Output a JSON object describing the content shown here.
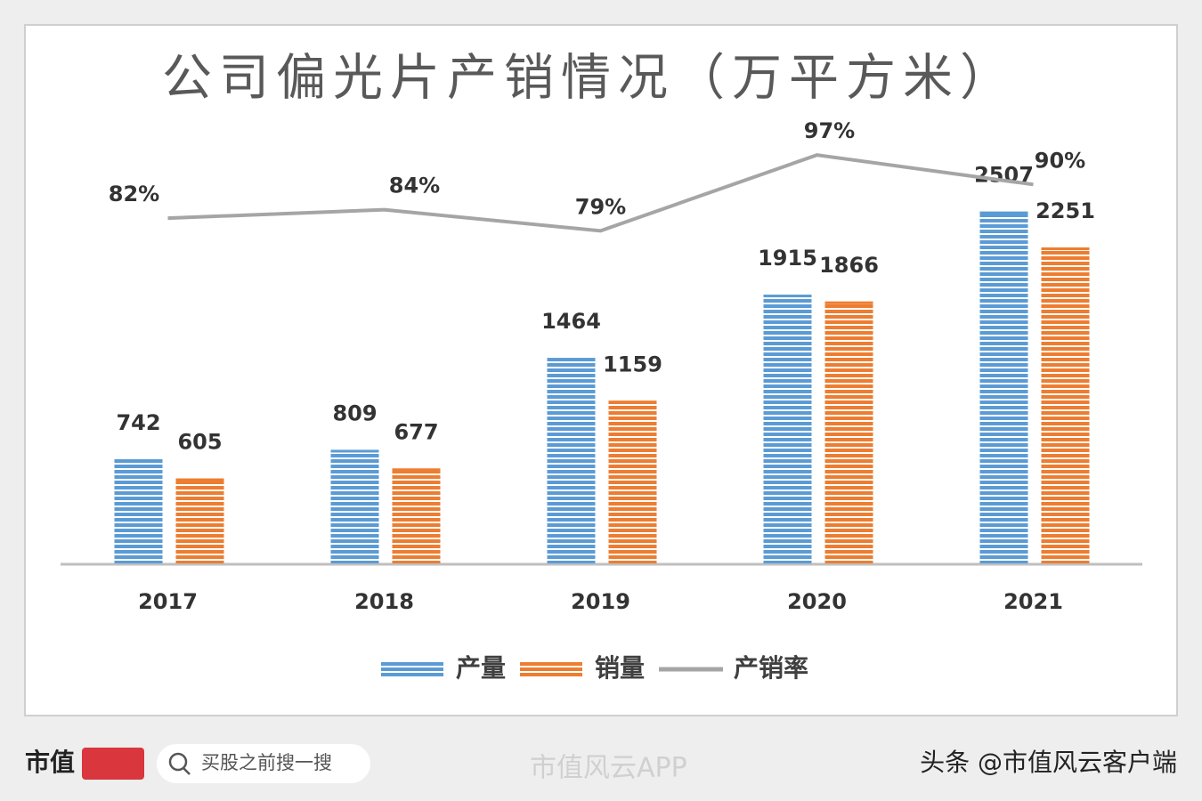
{
  "chart_data": {
    "type": "bar",
    "title": "公司偏光片产销情况（万平方米）",
    "categories": [
      "2017",
      "2018",
      "2019",
      "2020",
      "2021"
    ],
    "ylim": [
      0,
      3000
    ],
    "y2lim": [
      0,
      100
    ],
    "legend": "bottom",
    "series": [
      {
        "name": "产量",
        "color": "#5b9bd5",
        "values": [
          742,
          809,
          1464,
          1915,
          2507
        ]
      },
      {
        "name": "销量",
        "color": "#ed7d31",
        "values": [
          605,
          677,
          1159,
          1866,
          2251
        ]
      },
      {
        "name": "产销率",
        "color": "#a5a5a5",
        "type": "line",
        "axis": "y2",
        "values": [
          82,
          84,
          79,
          97,
          90
        ],
        "value_labels": [
          "82%",
          "84%",
          "79%",
          "97%",
          "90%"
        ]
      }
    ]
  },
  "footer": {
    "logo": "市值",
    "search_placeholder": "买股之前搜一搜",
    "watermark": "市值风云APP",
    "source": "头条 @市值风云客户端"
  }
}
